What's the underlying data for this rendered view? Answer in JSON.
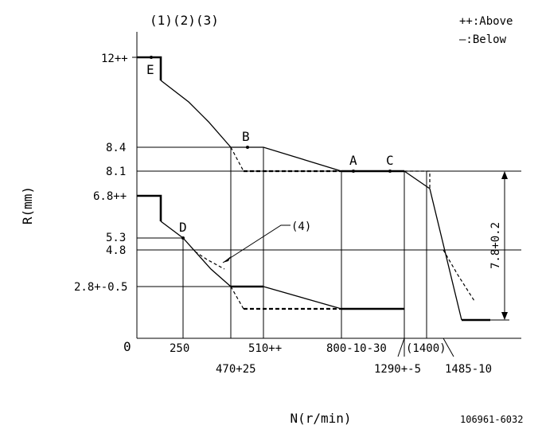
{
  "header": {
    "notes": [
      "(1)",
      "(2)",
      "(3)"
    ],
    "legend_above": "++:Above",
    "legend_below": "—:Below"
  },
  "axis": {
    "y_label": "R(mm)",
    "x_label": "N(r/min)",
    "origin": "0"
  },
  "y_ticks": [
    "12++",
    "8.4",
    "8.1",
    "6.8++",
    "5.3",
    "4.8",
    "2.8+-0.5"
  ],
  "x_ticks": [
    "250",
    "470+25",
    "510++",
    "800-10-30",
    "1290+-5",
    "(1400)",
    "1485-10"
  ],
  "points": [
    "E",
    "B",
    "A",
    "C",
    "D"
  ],
  "callout": "(4)",
  "dimension": "7.8+0.2",
  "drawing_no": "106961-6032"
}
